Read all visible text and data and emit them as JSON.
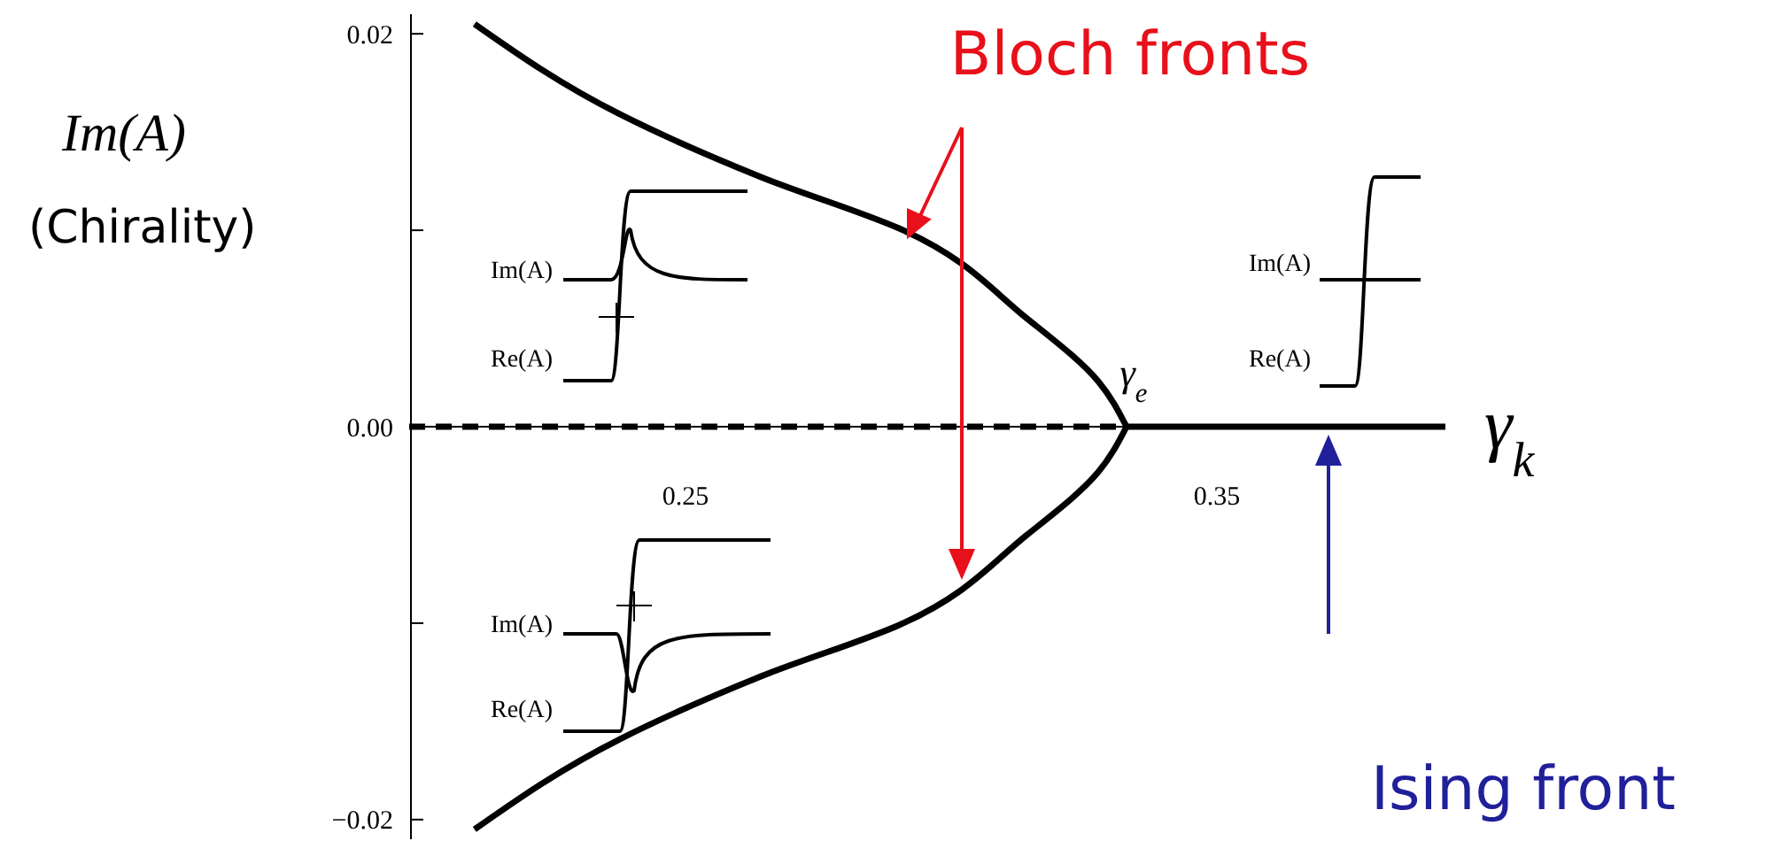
{
  "chart_data": {
    "type": "line",
    "ylabel": "Im(A)",
    "xlabel": "γ$_{k}$",
    "xlim": [
      0.198,
      0.393
    ],
    "ylim": [
      -0.021,
      0.021
    ],
    "xticks": [
      0.25,
      0.35
    ],
    "yticks": [
      {
        "value": -0.02,
        "label": "−0.02"
      },
      {
        "value": -0.01,
        "label": null
      },
      {
        "value": 0,
        "label": "0.00"
      },
      {
        "value": 0.01,
        "label": null
      },
      {
        "value": 0.02,
        "label": "0.02"
      }
    ],
    "tick_labels": "xy",
    "series": [
      {
        "color": "#000000",
        "line_style": "solid",
        "x": [
          0.2103,
          0.2377,
          0.2643,
          0.291,
          0.3143,
          0.3277,
          0.333
        ],
        "values": [
          0.0205,
          0.0159,
          0.0127,
          0.01,
          0.0055,
          0.0023,
          0
        ]
      },
      {
        "color": "#000000",
        "line_style": "solid",
        "x": [
          0.2103,
          0.2377,
          0.2643,
          0.291,
          0.3143,
          0.3277,
          0.333
        ],
        "values": [
          -0.0205,
          -0.0159,
          -0.0127,
          -0.01,
          -0.0055,
          -0.0023,
          0
        ]
      },
      {
        "color": "#000000",
        "line_style": "dashed",
        "x": [
          0.198,
          0.333
        ],
        "values": [
          0,
          0
        ]
      },
      {
        "color": "#000000",
        "line_style": "solid",
        "x": [
          0.333,
          0.393
        ],
        "values": [
          0,
          0
        ]
      }
    ],
    "annotations": [
      "Bloch fronts",
      "Ising front",
      "γ$_{e}$",
      "(Chirality)",
      "Im(A)",
      "Re(A)",
      "Im(A)",
      "Re(A)",
      "Im(A)",
      "Re(A)"
    ]
  }
}
